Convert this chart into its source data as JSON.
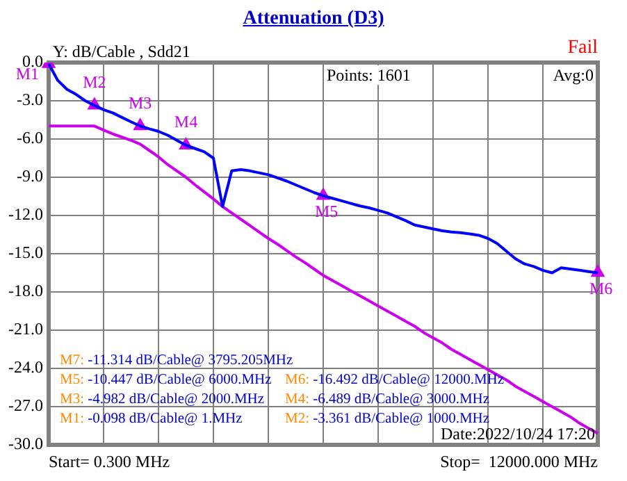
{
  "chart_data": {
    "type": "line",
    "title": "Attenuation (D3)",
    "ylabel": "Y: dB/Cable , Sdd21",
    "categories": [
      null,
      null,
      null,
      null,
      null,
      null,
      null,
      null,
      null,
      null,
      null,
      null,
      null,
      null,
      null,
      null,
      null,
      null,
      null,
      null,
      null,
      null,
      null,
      null,
      null,
      null,
      null,
      null,
      null,
      null,
      null,
      null,
      null,
      null,
      null,
      null,
      null,
      null,
      null,
      null,
      null,
      null,
      null,
      null,
      null,
      null,
      null,
      null,
      null,
      null,
      null,
      null,
      null,
      null,
      null,
      null,
      null,
      null,
      null,
      null,
      null
    ],
    "ylim": [
      -30,
      0
    ],
    "yticks": [
      {
        "value": 0,
        "label": "0.0"
      },
      {
        "value": -3,
        "label": "-3.0"
      },
      {
        "value": -6,
        "label": "-6.0"
      },
      {
        "value": -9,
        "label": "-9.0"
      },
      {
        "value": -12,
        "label": "-12.0"
      },
      {
        "value": -15,
        "label": "-15.0"
      },
      {
        "value": -18,
        "label": "-18.0"
      },
      {
        "value": -21,
        "label": "-21.0"
      },
      {
        "value": -24,
        "label": "-24.0"
      },
      {
        "value": -27,
        "label": "-27.0"
      },
      {
        "value": -30,
        "label": "-30.0"
      }
    ],
    "grid": true,
    "legend": false,
    "series": [
      {
        "type": "line",
        "color": "#0000ff",
        "marker": "none",
        "values": [
          -0.1,
          -1.4,
          -2.1,
          -2.5,
          -3.0,
          -3.36,
          -3.7,
          -3.95,
          -4.3,
          -4.65,
          -4.98,
          -5.2,
          -5.4,
          -5.7,
          -6.1,
          -6.49,
          -6.75,
          -7.0,
          -7.5,
          -11.3,
          -8.5,
          -8.4,
          -8.5,
          -8.65,
          -8.8,
          -9.05,
          -9.3,
          -9.6,
          -9.9,
          -10.2,
          -10.45,
          -10.65,
          -10.85,
          -11.05,
          -11.25,
          -11.4,
          -11.6,
          -11.8,
          -12.1,
          -12.4,
          -12.75,
          -12.9,
          -13.05,
          -13.2,
          -13.3,
          -13.35,
          -13.45,
          -13.55,
          -13.8,
          -14.2,
          -14.8,
          -15.4,
          -15.8,
          -16.0,
          -16.3,
          -16.5,
          -16.1,
          -16.2,
          -16.3,
          -16.4,
          -16.5
        ]
      },
      {
        "type": "line",
        "color": "#cc00ee",
        "marker": "none",
        "values": [
          -4.98,
          -4.98,
          -4.98,
          -4.98,
          -4.98,
          -4.98,
          -5.3,
          -5.6,
          -5.85,
          -6.1,
          -6.4,
          -6.9,
          -7.4,
          -8.0,
          -8.5,
          -9.0,
          -9.6,
          -10.15,
          -10.7,
          -11.3,
          -11.8,
          -12.3,
          -12.8,
          -13.3,
          -13.8,
          -14.25,
          -14.75,
          -15.25,
          -15.7,
          -16.2,
          -16.7,
          -17.1,
          -17.5,
          -17.9,
          -18.3,
          -18.7,
          -19.1,
          -19.5,
          -19.9,
          -20.3,
          -20.7,
          -21.2,
          -21.6,
          -22.0,
          -22.5,
          -22.9,
          -23.3,
          -23.7,
          -24.1,
          -24.5,
          -24.9,
          -25.4,
          -25.8,
          -26.2,
          -26.6,
          -27.0,
          -27.4,
          -27.8,
          -28.3,
          -28.7,
          -29.1
        ]
      },
      {
        "type": "scatter",
        "color": "#cc00ee",
        "marker": "triangle",
        "values": [
          -0.098,
          null,
          null,
          null,
          null,
          -3.361,
          null,
          null,
          null,
          null,
          -4.982,
          null,
          null,
          null,
          null,
          -6.489,
          null,
          null,
          null,
          null,
          null,
          null,
          null,
          null,
          null,
          null,
          null,
          null,
          null,
          null,
          -10.447,
          null,
          null,
          null,
          null,
          null,
          null,
          null,
          null,
          null,
          null,
          null,
          null,
          null,
          null,
          null,
          null,
          null,
          null,
          null,
          null,
          null,
          null,
          null,
          null,
          null,
          null,
          null,
          null,
          null,
          -16.492
        ],
        "value_labels": [
          "M1",
          null,
          null,
          null,
          null,
          "M2",
          null,
          null,
          null,
          null,
          "M3",
          null,
          null,
          null,
          null,
          "M4",
          null,
          null,
          null,
          null,
          null,
          null,
          null,
          null,
          null,
          null,
          null,
          null,
          null,
          null,
          "M5",
          null,
          null,
          null,
          null,
          null,
          null,
          null,
          null,
          null,
          null,
          null,
          null,
          null,
          null,
          null,
          null,
          null,
          null,
          null,
          null,
          null,
          null,
          null,
          null,
          null,
          null,
          null,
          null,
          null,
          "M6"
        ]
      }
    ],
    "annotations": [
      "Fail",
      "Points: 1601",
      "Avg:0",
      "Date:2022/10/24 17:20",
      "Start= 0.300 MHz",
      "Stop=  12000.000 MHz",
      "M7: -11.314 dB/Cable@ 3795.205MHz",
      "M5: -10.447 dB/Cable@ 6000.MHz",
      "M6: -16.492 dB/Cable@ 12000.MHz",
      "M3: -4.982 dB/Cable@ 2000.MHz",
      "M4: -6.489 dB/Cable@ 3000.MHz",
      "M1: -0.098 dB/Cable@ 1.MHz",
      "M2: -3.361 dB/Cable@ 1000.MHz"
    ]
  }
}
